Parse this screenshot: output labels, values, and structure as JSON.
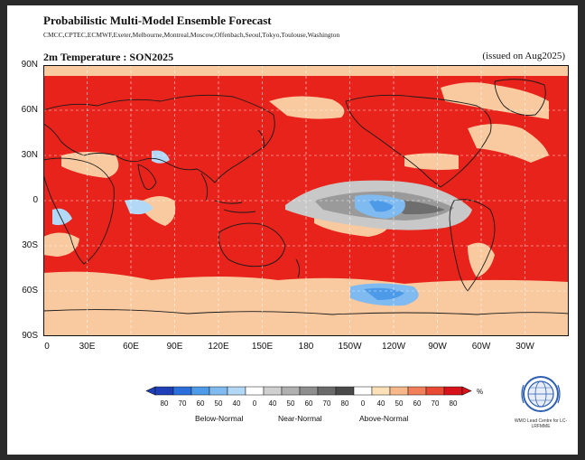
{
  "figure": {
    "title": "Probabilistic Multi-Model Ensemble Forecast",
    "centers": "CMCC,CPTEC,ECMWF,Exeter,Melbourne,Montreal,Moscow,Offenbach,Seoul,Tokyo,Toulouse,Washington",
    "subtitle": "2m Temperature : SON2025",
    "issued": "(issued on Aug2025)"
  },
  "map": {
    "lat_labels": [
      "90N",
      "60N",
      "30N",
      "0",
      "30S",
      "60S",
      "90S"
    ],
    "lon_labels": [
      "0",
      "30E",
      "60E",
      "90E",
      "120E",
      "150E",
      "180",
      "150W",
      "120W",
      "90W",
      "60W",
      "30W"
    ],
    "colors": {
      "ocean_warm": "#e8231b",
      "land": "#ffffff",
      "coast": "#1a1a1a",
      "grid": "#ffffff"
    }
  },
  "legend": {
    "unit": "%",
    "values": [
      "80",
      "70",
      "60",
      "50",
      "40",
      "0",
      "40",
      "50",
      "60",
      "70",
      "80",
      "0",
      "40",
      "50",
      "60",
      "70",
      "80"
    ],
    "categories": [
      "Below-Normal",
      "Near-Normal",
      "Above-Normal"
    ],
    "colors": [
      "#1e3fb8",
      "#2a6fdc",
      "#4d9ae8",
      "#7fbaf0",
      "#b3d8f5",
      "#ffffff",
      "#d0d0d0",
      "#b0b0b0",
      "#8e8e8e",
      "#6a6a6a",
      "#4a4a4a",
      "#ffffff",
      "#fbe0b8",
      "#f7b98a",
      "#f07f5a",
      "#e84a33",
      "#d8121b"
    ]
  },
  "logo": {
    "text": "WMO Lead Centre for LC-LRFMME",
    "icon": "wmo-globe-icon"
  }
}
